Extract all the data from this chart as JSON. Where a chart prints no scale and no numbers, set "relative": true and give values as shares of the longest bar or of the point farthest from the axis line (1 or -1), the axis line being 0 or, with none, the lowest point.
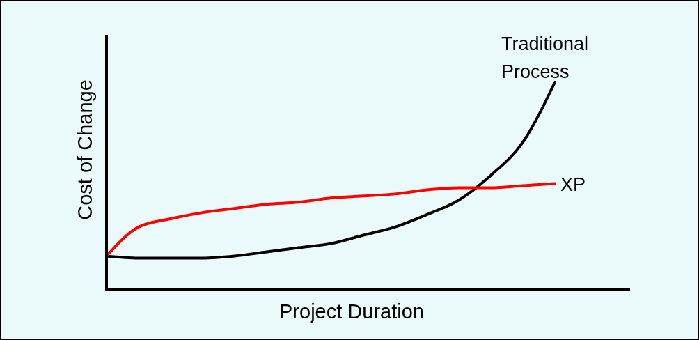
{
  "chart_data": {
    "type": "line",
    "relative": true,
    "xlabel": "Project Duration",
    "ylabel": "Cost of Change",
    "categories": [
      null,
      null,
      null,
      null,
      null,
      null,
      null,
      null,
      null,
      null,
      null,
      null,
      null,
      null,
      null
    ],
    "legend": false,
    "grid": false,
    "series": [
      {
        "name": "Traditional Process",
        "color": "#000000",
        "values": [
          0.16,
          0.15,
          0.15,
          0.15,
          0.16,
          0.18,
          0.2,
          0.22,
          0.26,
          0.3,
          0.36,
          0.43,
          0.55,
          0.71,
          1
        ]
      },
      {
        "name": "XP",
        "color": "#ff0000",
        "values": [
          0.16,
          0.3,
          0.34,
          0.37,
          0.39,
          0.41,
          0.42,
          0.44,
          0.45,
          0.46,
          0.48,
          0.49,
          0.49,
          0.5,
          0.51
        ]
      }
    ]
  }
}
